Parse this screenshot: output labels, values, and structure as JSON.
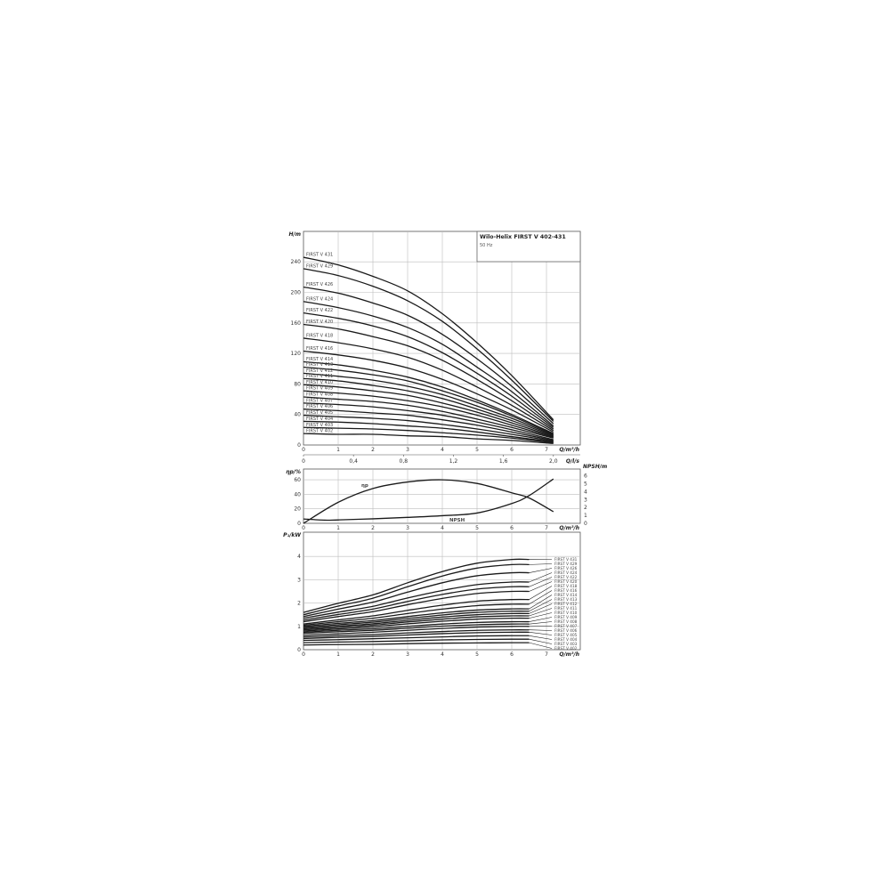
{
  "title": "Wilo-Helix FIRST V 402-431",
  "subtitle": "50 Hz",
  "chart_data": [
    {
      "type": "line",
      "id": "head",
      "ylabel": "H/m",
      "xlabel": "Q/m³/h",
      "xlabel2": "Q/l/s",
      "xlim": [
        0,
        8
      ],
      "ylim": [
        0,
        280
      ],
      "grid": true,
      "xticks": [
        "0",
        "1",
        "2",
        "3",
        "4",
        "5",
        "6",
        "7"
      ],
      "xticks2": [
        "0",
        "0,4",
        "0,8",
        "1,2",
        "1,6",
        "2,0"
      ],
      "xticks2_values_ls": [
        0,
        0.4,
        0.8,
        1.2,
        1.6,
        2.0
      ],
      "yticks": [
        "0",
        "40",
        "80",
        "120",
        "160",
        "200",
        "240"
      ],
      "x": [
        0,
        1,
        2,
        3,
        4,
        5,
        6,
        7.2
      ],
      "series": [
        {
          "name": "FIRST V 431",
          "values": [
            246,
            236,
            221,
            202,
            172,
            134,
            91,
            33
          ]
        },
        {
          "name": "FIRST V 429",
          "values": [
            231,
            222,
            208,
            189,
            162,
            126,
            85,
            31
          ]
        },
        {
          "name": "FIRST V 426",
          "values": [
            207,
            199,
            186,
            170,
            145,
            113,
            77,
            28
          ]
        },
        {
          "name": "FIRST V 424",
          "values": [
            188,
            180,
            169,
            154,
            132,
            102,
            70,
            25
          ]
        },
        {
          "name": "FIRST V 422",
          "values": [
            173,
            166,
            156,
            142,
            121,
            94,
            64,
            23
          ]
        },
        {
          "name": "FIRST V 420",
          "values": [
            158,
            152,
            142,
            130,
            111,
            86,
            58,
            21
          ]
        },
        {
          "name": "FIRST V 418",
          "values": [
            140,
            134,
            126,
            115,
            98,
            76,
            52,
            19
          ]
        },
        {
          "name": "FIRST V 416",
          "values": [
            123,
            118,
            111,
            101,
            86,
            67,
            46,
            17
          ]
        },
        {
          "name": "FIRST V 414",
          "values": [
            109,
            105,
            98,
            89,
            76,
            59,
            40,
            15
          ]
        },
        {
          "name": "FIRST V 413",
          "values": [
            102,
            98,
            92,
            84,
            71,
            56,
            38,
            14
          ]
        },
        {
          "name": "FIRST V 412",
          "values": [
            94,
            90,
            85,
            77,
            66,
            51,
            35,
            13
          ]
        },
        {
          "name": "FIRST V 411",
          "values": [
            87,
            84,
            78,
            71,
            61,
            47,
            32,
            12
          ]
        },
        {
          "name": "FIRST V 410",
          "values": [
            79,
            76,
            71,
            65,
            55,
            43,
            29,
            11
          ]
        },
        {
          "name": "FIRST V 409",
          "values": [
            71,
            68,
            64,
            58,
            50,
            39,
            26,
            10
          ]
        },
        {
          "name": "FIRST V 408",
          "values": [
            63,
            60,
            57,
            52,
            44,
            34,
            23,
            9
          ]
        },
        {
          "name": "FIRST V 407",
          "values": [
            55,
            53,
            50,
            45,
            39,
            30,
            20,
            7
          ]
        },
        {
          "name": "FIRST V 406",
          "values": [
            47,
            45,
            42,
            39,
            33,
            26,
            17,
            6
          ]
        },
        {
          "name": "FIRST V 405",
          "values": [
            39,
            37,
            35,
            32,
            27,
            21,
            14,
            5
          ]
        },
        {
          "name": "FIRST V 404",
          "values": [
            31,
            30,
            28,
            25,
            22,
            17,
            11,
            4
          ]
        },
        {
          "name": "FIRST V 403",
          "values": [
            23,
            22,
            21,
            19,
            16,
            13,
            9,
            3
          ]
        },
        {
          "name": "FIRST V 402",
          "values": [
            15,
            14,
            14,
            12,
            11,
            8,
            6,
            2
          ]
        }
      ]
    },
    {
      "type": "line",
      "id": "efficiency_npsh",
      "ylabel": "ηp/%",
      "ylabel_right": "NPSH/m",
      "xlabel": "Q/m³/h",
      "xlim": [
        0,
        8
      ],
      "ylim": [
        0,
        75
      ],
      "ylim_right": [
        0,
        6.8
      ],
      "grid": true,
      "xticks": [
        "0",
        "1",
        "2",
        "3",
        "4",
        "5",
        "6",
        "7"
      ],
      "yticks": [
        "0",
        "20",
        "40",
        "60"
      ],
      "yticks_right": [
        "0",
        "1",
        "2",
        "3",
        "4",
        "5",
        "6"
      ],
      "series": [
        {
          "name": "ηp",
          "axis": "left",
          "x": [
            0,
            1,
            2,
            3,
            4,
            5,
            6,
            6.5,
            7.2
          ],
          "values": [
            0,
            29,
            48,
            57,
            60,
            55,
            42,
            35,
            16
          ]
        },
        {
          "name": "NPSH",
          "axis": "right",
          "x": [
            0,
            0.6,
            1,
            2,
            3,
            4,
            5,
            6,
            6.5,
            7.2
          ],
          "values": [
            0.55,
            0.4,
            0.43,
            0.57,
            0.75,
            0.96,
            1.3,
            2.5,
            3.5,
            5.6
          ]
        }
      ]
    },
    {
      "type": "line",
      "id": "power",
      "ylabel": "P₁/kW",
      "xlabel": "Q/m³/h",
      "xlim": [
        0,
        8
      ],
      "ylim": [
        0,
        5
      ],
      "grid": true,
      "xticks": [
        "0",
        "1",
        "2",
        "3",
        "4",
        "5",
        "6",
        "7"
      ],
      "yticks": [
        "0",
        "1",
        "2",
        "3",
        "4"
      ],
      "x": [
        0,
        1,
        2,
        3,
        4,
        5,
        6,
        6.5
      ],
      "series": [
        {
          "name": "FIRST V 431",
          "values": [
            1.6,
            1.99,
            2.35,
            2.87,
            3.35,
            3.71,
            3.87,
            3.87
          ]
        },
        {
          "name": "FIRST V 429",
          "values": [
            1.5,
            1.87,
            2.21,
            2.7,
            3.16,
            3.5,
            3.65,
            3.65
          ]
        },
        {
          "name": "FIRST V 426",
          "values": [
            1.42,
            1.74,
            2.04,
            2.47,
            2.87,
            3.17,
            3.3,
            3.3
          ]
        },
        {
          "name": "FIRST V 424",
          "values": [
            1.35,
            1.61,
            1.86,
            2.22,
            2.54,
            2.79,
            2.9,
            2.9
          ]
        },
        {
          "name": "FIRST V 422",
          "values": [
            1.27,
            1.51,
            1.74,
            2.07,
            2.37,
            2.6,
            2.7,
            2.7
          ]
        },
        {
          "name": "FIRST V 420",
          "values": [
            1.2,
            1.42,
            1.63,
            1.93,
            2.2,
            2.41,
            2.5,
            2.5
          ]
        },
        {
          "name": "FIRST V 418",
          "values": [
            1.1,
            1.28,
            1.45,
            1.69,
            1.91,
            2.08,
            2.15,
            2.15
          ]
        },
        {
          "name": "FIRST V 416",
          "values": [
            1.05,
            1.2,
            1.35,
            1.55,
            1.74,
            1.89,
            1.95,
            1.95
          ]
        },
        {
          "name": "FIRST V 414",
          "values": [
            1,
            1.13,
            1.25,
            1.42,
            1.58,
            1.7,
            1.75,
            1.75
          ]
        },
        {
          "name": "FIRST V 413",
          "values": [
            0.95,
            1.07,
            1.18,
            1.34,
            1.49,
            1.6,
            1.65,
            1.65
          ]
        },
        {
          "name": "FIRST V 412",
          "values": [
            0.9,
            1.01,
            1.11,
            1.26,
            1.4,
            1.5,
            1.55,
            1.55
          ]
        },
        {
          "name": "FIRST V 411",
          "values": [
            0.85,
            0.95,
            1.05,
            1.19,
            1.31,
            1.41,
            1.45,
            1.45
          ]
        },
        {
          "name": "FIRST V 410",
          "values": [
            0.8,
            0.89,
            0.98,
            1.11,
            1.22,
            1.31,
            1.35,
            1.35
          ]
        },
        {
          "name": "FIRST V 409",
          "values": [
            0.75,
            0.83,
            0.9,
            1.0,
            1.1,
            1.17,
            1.2,
            1.2
          ]
        },
        {
          "name": "FIRST V 408",
          "values": [
            0.7,
            0.77,
            0.83,
            0.92,
            1.01,
            1.07,
            1.1,
            1.1
          ]
        },
        {
          "name": "FIRST V 407",
          "values": [
            0.62,
            0.68,
            0.75,
            0.83,
            0.91,
            0.97,
            1.0,
            1.0
          ]
        },
        {
          "name": "FIRST V 406",
          "values": [
            0.55,
            0.6,
            0.65,
            0.72,
            0.78,
            0.83,
            0.85,
            0.85
          ]
        },
        {
          "name": "FIRST V 405",
          "values": [
            0.48,
            0.53,
            0.57,
            0.63,
            0.69,
            0.73,
            0.75,
            0.75
          ]
        },
        {
          "name": "FIRST V 404",
          "values": [
            0.4,
            0.43,
            0.47,
            0.51,
            0.55,
            0.59,
            0.6,
            0.6
          ]
        },
        {
          "name": "FIRST V 403",
          "values": [
            0.3,
            0.33,
            0.35,
            0.38,
            0.42,
            0.44,
            0.45,
            0.45
          ]
        },
        {
          "name": "FIRST V 402",
          "values": [
            0.2,
            0.22,
            0.23,
            0.26,
            0.28,
            0.29,
            0.3,
            0.3
          ]
        }
      ]
    }
  ],
  "colors": {
    "curve": "#1a1a1a",
    "grid": "#bdbdbd",
    "frame": "#555555"
  }
}
